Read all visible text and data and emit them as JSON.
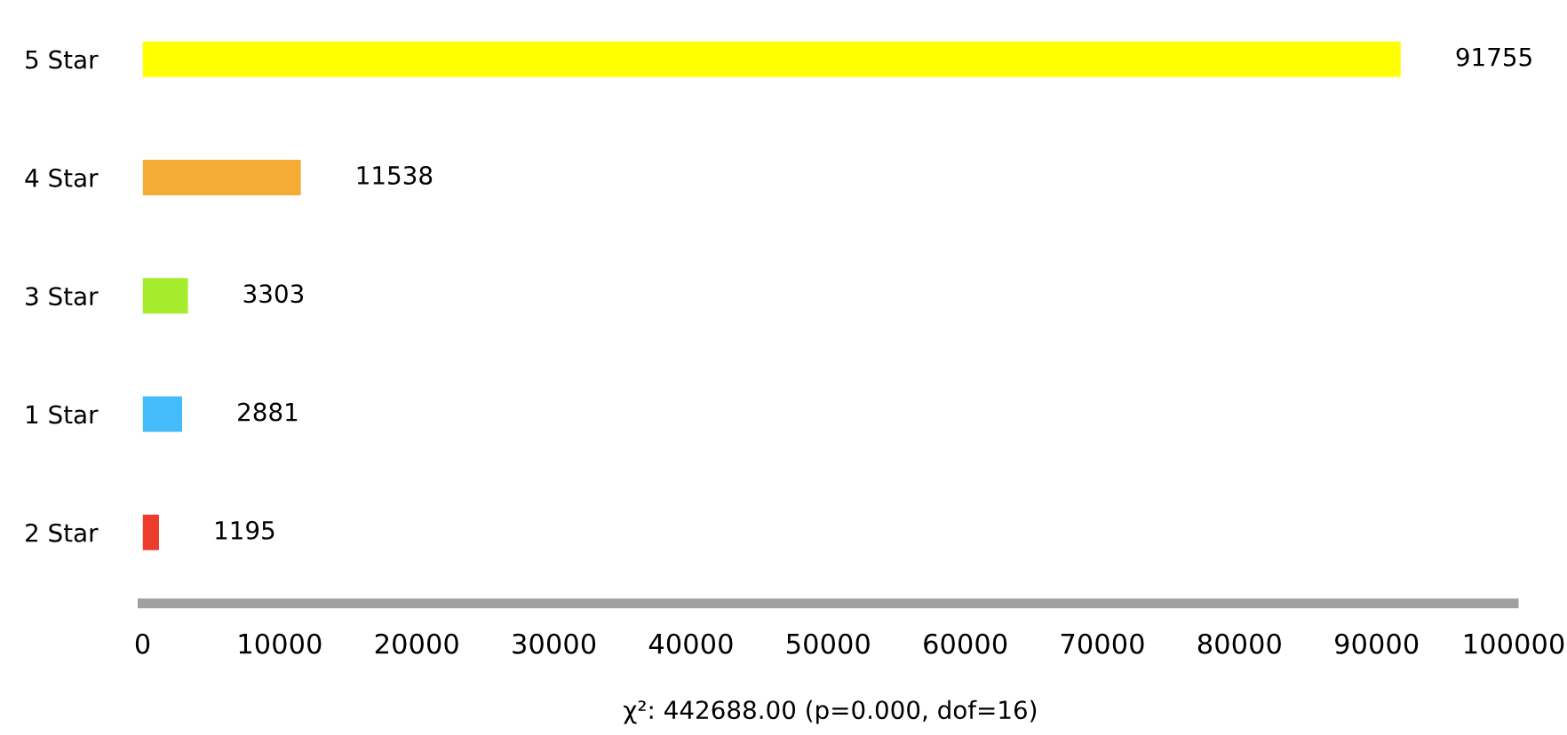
{
  "chart_data": {
    "type": "bar",
    "orientation": "horizontal",
    "categories": [
      "5 Star",
      "4 Star",
      "3 Star",
      "1 Star",
      "2 Star"
    ],
    "values": [
      91755,
      11538,
      3303,
      2881,
      1195
    ],
    "colors": [
      "#ffff00",
      "#f4ac34",
      "#a4ec2c",
      "#44bcfc",
      "#ec3c2c"
    ],
    "data_labels": true,
    "xlim": [
      0,
      100000
    ],
    "xticks": [
      0,
      10000,
      20000,
      30000,
      40000,
      50000,
      60000,
      70000,
      80000,
      90000,
      100000
    ],
    "grid": false,
    "annotations": [
      "χ²: 442688.00 (p=0.000, dof=16)"
    ]
  }
}
